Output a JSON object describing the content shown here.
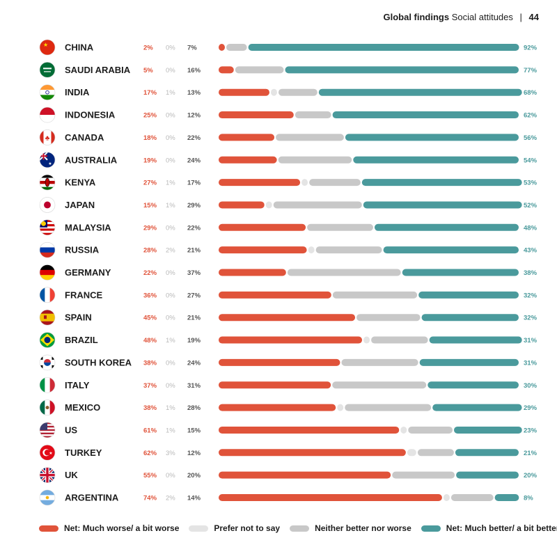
{
  "header": {
    "section": "Global findings",
    "topic": "Social attitudes",
    "separator": "|",
    "page": "44"
  },
  "colors": {
    "worse": "#e0533a",
    "prefer_not": "#e4e4e4",
    "neither": "#c8c8c8",
    "better": "#4a9a9c"
  },
  "chart_data": {
    "type": "bar",
    "stacked": true,
    "orientation": "horizontal",
    "categories": [
      "CHINA",
      "SAUDI ARABIA",
      "INDIA",
      "INDONESIA",
      "CANADA",
      "AUSTRALIA",
      "KENYA",
      "JAPAN",
      "MALAYSIA",
      "RUSSIA",
      "GERMANY",
      "FRANCE",
      "SPAIN",
      "BRAZIL",
      "SOUTH KOREA",
      "ITALY",
      "MEXICO",
      "US",
      "TURKEY",
      "UK",
      "ARGENTINA"
    ],
    "series": [
      {
        "name": "Net: Much worse/ a bit worse",
        "values": [
          2,
          5,
          17,
          25,
          18,
          19,
          27,
          15,
          29,
          28,
          22,
          36,
          45,
          48,
          38,
          37,
          38,
          61,
          62,
          55,
          74
        ]
      },
      {
        "name": "Prefer not to say",
        "values": [
          0,
          0,
          1,
          0,
          0,
          0,
          1,
          1,
          0,
          2,
          0,
          0,
          0,
          1,
          0,
          0,
          1,
          1,
          3,
          0,
          2
        ]
      },
      {
        "name": "Neither better nor worse",
        "values": [
          7,
          16,
          13,
          12,
          22,
          24,
          17,
          29,
          22,
          21,
          37,
          27,
          21,
          19,
          24,
          31,
          28,
          15,
          12,
          20,
          14
        ]
      },
      {
        "name": "Net: Much better/ a bit better",
        "values": [
          92,
          77,
          68,
          62,
          56,
          54,
          53,
          52,
          48,
          43,
          38,
          32,
          32,
          31,
          31,
          30,
          29,
          23,
          21,
          20,
          8
        ]
      }
    ],
    "unit": "%",
    "legend_position": "bottom",
    "flags": [
      "china-flag-icon",
      "saudi-arabia-flag-icon",
      "india-flag-icon",
      "indonesia-flag-icon",
      "canada-flag-icon",
      "australia-flag-icon",
      "kenya-flag-icon",
      "japan-flag-icon",
      "malaysia-flag-icon",
      "russia-flag-icon",
      "germany-flag-icon",
      "france-flag-icon",
      "spain-flag-icon",
      "brazil-flag-icon",
      "south-korea-flag-icon",
      "italy-flag-icon",
      "mexico-flag-icon",
      "us-flag-icon",
      "turkey-flag-icon",
      "uk-flag-icon",
      "argentina-flag-icon"
    ]
  }
}
